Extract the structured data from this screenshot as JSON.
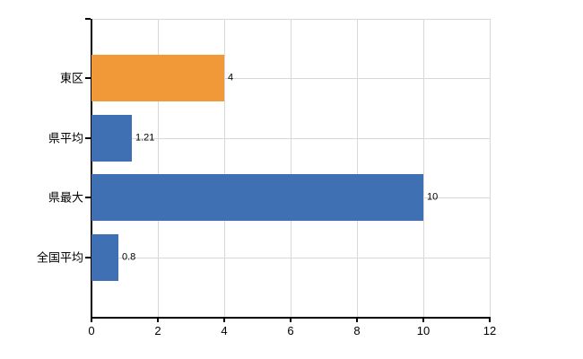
{
  "chart_data": {
    "type": "bar",
    "orientation": "horizontal",
    "title": "",
    "xlabel": "",
    "ylabel": "",
    "categories": [
      "東区",
      "県平均",
      "県最大",
      "全国平均"
    ],
    "values": [
      4,
      1.21,
      10,
      0.8
    ],
    "value_labels": [
      "4",
      "1.21",
      "10",
      "0.8"
    ],
    "bar_colors": [
      "#F19938",
      "#4070B4",
      "#4070B4",
      "#4070B4"
    ],
    "xlim": [
      0,
      12
    ],
    "x_ticks": [
      0,
      2,
      4,
      6,
      8,
      10,
      12
    ],
    "x_tick_labels": [
      "0",
      "2",
      "4",
      "6",
      "8",
      "10",
      "12"
    ],
    "grid": true,
    "legend_position": "none",
    "colors": {
      "background": "#ffffff",
      "gridline": "#d8d8d8",
      "axis": "#000000",
      "text": "#000000",
      "bar_blue": "#4070B4",
      "bar_orange": "#F19938"
    }
  }
}
